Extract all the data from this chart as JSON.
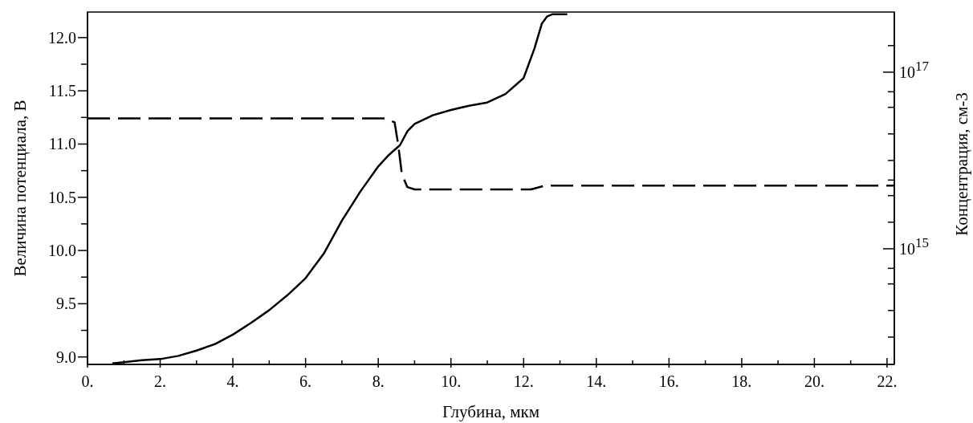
{
  "chart_data": {
    "type": "line",
    "xlabel": "Глубина, мкм",
    "ylabel": "Величина потенциала, В",
    "y2label": "Концентрация, см-3",
    "xlim": [
      0,
      22.2
    ],
    "ylim": [
      8.93,
      12.24
    ],
    "y2lim": [
      49000000000000.0,
      4.8e+17
    ],
    "log": "y2",
    "grid": false,
    "marker": "none",
    "xticks": [
      {
        "value": 0,
        "label": "0."
      },
      {
        "value": 1,
        "label": null
      },
      {
        "value": 2,
        "label": "2."
      },
      {
        "value": 3,
        "label": null
      },
      {
        "value": 4,
        "label": "4."
      },
      {
        "value": 5,
        "label": null
      },
      {
        "value": 6,
        "label": "6."
      },
      {
        "value": 7,
        "label": null
      },
      {
        "value": 8,
        "label": "8."
      },
      {
        "value": 9,
        "label": null
      },
      {
        "value": 10,
        "label": "10."
      },
      {
        "value": 11,
        "label": null
      },
      {
        "value": 12,
        "label": "12."
      },
      {
        "value": 13,
        "label": null
      },
      {
        "value": 14,
        "label": "14."
      },
      {
        "value": 15,
        "label": null
      },
      {
        "value": 16,
        "label": "16."
      },
      {
        "value": 17,
        "label": null
      },
      {
        "value": 18,
        "label": "18."
      },
      {
        "value": 19,
        "label": null
      },
      {
        "value": 20,
        "label": "20."
      },
      {
        "value": 21,
        "label": null
      },
      {
        "value": 22,
        "label": "22."
      }
    ],
    "yticks": [
      {
        "value": 9,
        "label": "9.0"
      },
      {
        "value": 9.25,
        "label": null
      },
      {
        "value": 9.5,
        "label": "9.5"
      },
      {
        "value": 9.75,
        "label": null
      },
      {
        "value": 10,
        "label": "10.0"
      },
      {
        "value": 10.25,
        "label": null
      },
      {
        "value": 10.5,
        "label": "10.5"
      },
      {
        "value": 10.75,
        "label": null
      },
      {
        "value": 11,
        "label": "11.0"
      },
      {
        "value": 11.25,
        "label": null
      },
      {
        "value": 11.5,
        "label": "11.5"
      },
      {
        "value": 11.75,
        "label": null
      },
      {
        "value": 12,
        "label": "12.0"
      }
    ],
    "y2ticks": [
      {
        "value": 100000000000000.0,
        "label": null
      },
      {
        "value": 200000000000000.0,
        "label": null
      },
      {
        "value": 400000000000000.0,
        "label": null
      },
      {
        "value": 600000000000000.0,
        "label": null
      },
      {
        "value": 1000000000000000.0,
        "label": "10$^{15}$"
      },
      {
        "value": 2000000000000000.0,
        "label": null
      },
      {
        "value": 4000000000000000.0,
        "label": null
      },
      {
        "value": 6000000000000000.0,
        "label": null
      },
      {
        "value": 1e+16,
        "label": null
      },
      {
        "value": 2e+16,
        "label": null
      },
      {
        "value": 4e+16,
        "label": null
      },
      {
        "value": 6e+16,
        "label": null
      },
      {
        "value": 1e+17,
        "label": "10$^{17}$"
      },
      {
        "value": 2e+17,
        "label": null
      }
    ],
    "series": [
      {
        "color": "#000000",
        "line_style": "solid",
        "x": [
          0.68,
          1.0,
          1.5,
          2.0,
          2.5,
          3.0,
          3.5,
          4.0,
          4.5,
          5.0,
          5.5,
          6.0,
          6.5,
          7.0,
          7.5,
          8.0,
          8.3,
          8.6,
          8.8,
          9.0,
          9.5,
          10.0,
          10.5,
          11.0,
          11.5,
          12.0,
          12.3,
          12.5,
          12.65,
          12.8,
          13.2
        ],
        "values": [
          8.94,
          8.95,
          8.97,
          8.98,
          9.01,
          9.06,
          9.12,
          9.21,
          9.32,
          9.44,
          9.58,
          9.74,
          9.97,
          10.28,
          10.55,
          10.79,
          10.9,
          10.99,
          11.12,
          11.19,
          11.27,
          11.32,
          11.36,
          11.39,
          11.47,
          11.62,
          11.9,
          12.13,
          12.2,
          12.22,
          12.22
        ]
      },
      {
        "color": "#000000",
        "line_style": "dashed",
        "axis": "y2",
        "x": [
          0,
          8.2,
          8.45,
          8.55,
          8.65,
          8.8,
          9.0,
          12.2,
          12.6,
          22.2
        ],
        "values": [
          3e+16,
          3e+16,
          2.7e+16,
          1.5e+16,
          7000000000000000.0,
          5000000000000000.0,
          4700000000000000.0,
          4700000000000000.0,
          5200000000000000.0,
          5200000000000000.0
        ]
      }
    ]
  }
}
